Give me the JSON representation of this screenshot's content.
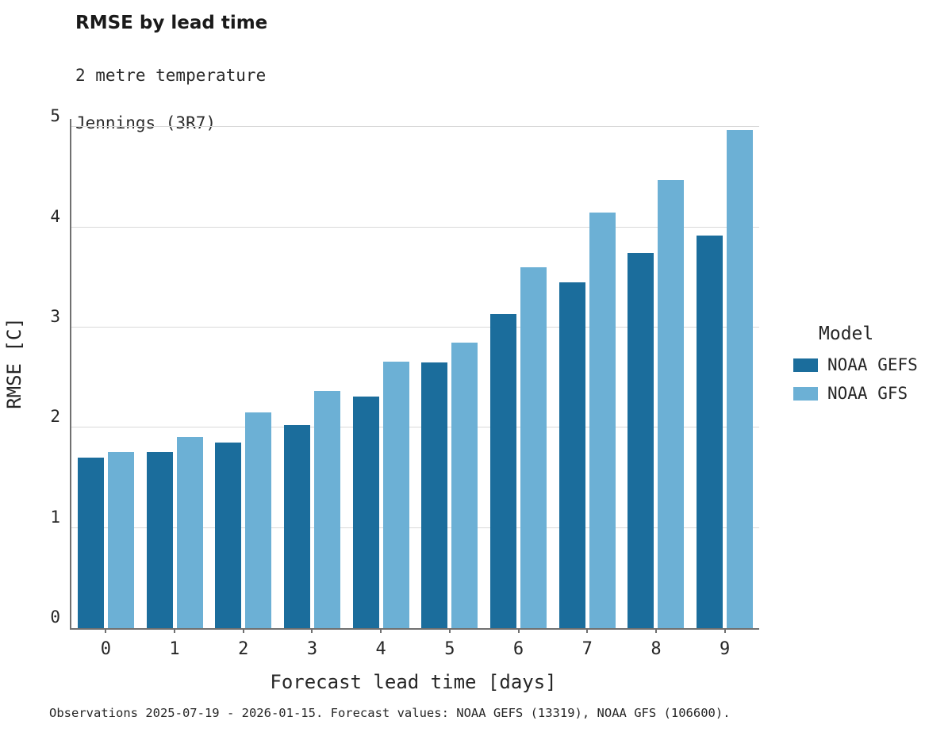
{
  "header": {
    "title": "RMSE by lead time",
    "subtitle_line1": "2 metre temperature",
    "subtitle_line2": "Jennings (3R7)"
  },
  "legend": {
    "title": "Model",
    "entries": [
      {
        "label": "NOAA GEFS",
        "color": "#1b6d9c"
      },
      {
        "label": "NOAA GFS",
        "color": "#6cb0d5"
      }
    ]
  },
  "caption": "Observations 2025-07-19 - 2026-01-15. Forecast values: NOAA GEFS (13319), NOAA GFS (106600).",
  "chart_data": {
    "type": "bar",
    "title": "RMSE by lead time",
    "subtitle": "2 metre temperature / Jennings (3R7)",
    "xlabel": "Forecast lead time [days]",
    "ylabel": "RMSE [C]",
    "categories": [
      "0",
      "1",
      "2",
      "3",
      "4",
      "5",
      "6",
      "7",
      "8",
      "9"
    ],
    "series": [
      {
        "name": "NOAA GEFS",
        "color": "#1b6d9c",
        "values": [
          1.7,
          1.76,
          1.85,
          2.03,
          2.31,
          2.65,
          3.13,
          3.45,
          3.74,
          3.92
        ]
      },
      {
        "name": "NOAA GFS",
        "color": "#6cb0d5",
        "values": [
          1.76,
          1.91,
          2.15,
          2.37,
          2.66,
          2.85,
          3.6,
          4.15,
          4.47,
          4.97
        ]
      }
    ],
    "yticks": [
      0,
      1,
      2,
      3,
      4,
      5
    ],
    "ylim": [
      0,
      5.08
    ],
    "grid": true,
    "legend_position": "right"
  }
}
